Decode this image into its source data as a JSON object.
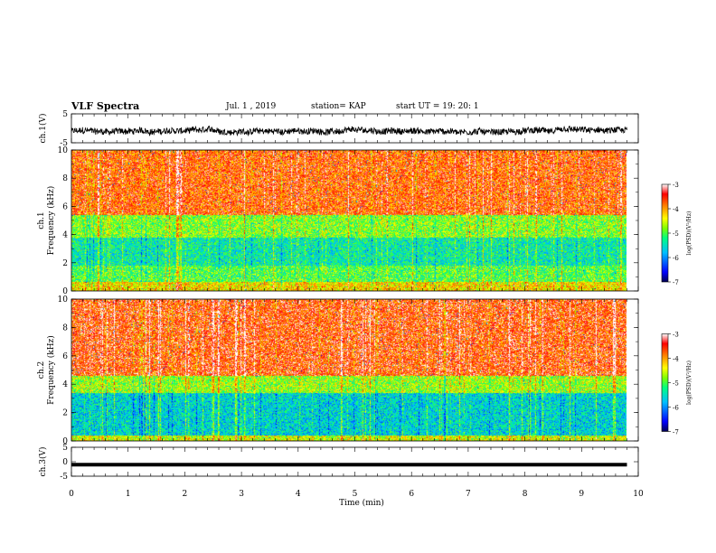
{
  "header": {
    "title": "VLF Spectra",
    "date": "Jul. 1 , 2019",
    "station": "station= KAP",
    "start": "start UT = 19: 20: 1"
  },
  "chart_data": [
    {
      "type": "line",
      "name": "channel-1-waveform",
      "ylabel": "ch.1(V)",
      "ylim": [
        -5,
        5
      ],
      "yticks": [
        "5",
        "-5"
      ],
      "xlim": [
        0,
        10
      ],
      "approx_level_V": -1
    },
    {
      "type": "heatmap",
      "name": "channel-1-spectrogram",
      "ylabel": "ch.1",
      "ylabel2": "Frequency (kHz)",
      "ylim": [
        0,
        10
      ],
      "yticks": [
        "0",
        "2",
        "4",
        "6",
        "8",
        "10"
      ],
      "xlim": [
        0,
        9.8
      ],
      "colorbar": {
        "label": "log(PSD)(V²/Hz)",
        "range": [
          -7,
          -3
        ],
        "ticks": [
          "-3",
          "-4",
          "-5",
          "-6",
          "-7"
        ]
      },
      "dominant_level_by_band_kHz": [
        {
          "band": [
            0,
            0.7
          ],
          "logPSD": -4.3
        },
        {
          "band": [
            0.7,
            1.8
          ],
          "logPSD": -5.0
        },
        {
          "band": [
            1.8,
            3.8
          ],
          "logPSD": -5.4
        },
        {
          "band": [
            3.8,
            5.4
          ],
          "logPSD": -4.8
        },
        {
          "band": [
            5.4,
            10
          ],
          "logPSD": -3.7
        }
      ]
    },
    {
      "type": "heatmap",
      "name": "channel-2-spectrogram",
      "ylabel": "ch.2",
      "ylabel2": "Frequency (kHz)",
      "ylim": [
        0,
        10
      ],
      "yticks": [
        "0",
        "2",
        "4",
        "6",
        "8",
        "10"
      ],
      "xlim": [
        0,
        9.8
      ],
      "colorbar": {
        "label": "log(PSD)(V²/Hz)",
        "range": [
          -7,
          -3
        ],
        "ticks": [
          "-3",
          "-4",
          "-5",
          "-6",
          "-7"
        ]
      },
      "dominant_level_by_band_kHz": [
        {
          "band": [
            0,
            0.4
          ],
          "logPSD": -4.5
        },
        {
          "band": [
            0.4,
            3.4
          ],
          "logPSD": -5.6
        },
        {
          "band": [
            3.4,
            4.6
          ],
          "logPSD": -4.7
        },
        {
          "band": [
            4.6,
            10
          ],
          "logPSD": -3.6
        }
      ]
    },
    {
      "type": "line",
      "name": "channel-3-waveform",
      "ylabel": "ch.3(V)",
      "ylim": [
        -5,
        5
      ],
      "yticks": [
        "5",
        "0",
        "-5"
      ],
      "xlim": [
        0,
        10
      ],
      "approx_level_V": -1
    }
  ],
  "x_axis": {
    "label": "Time (min)",
    "ticks": [
      "0",
      "1",
      "2",
      "3",
      "4",
      "5",
      "6",
      "7",
      "8",
      "9",
      "10"
    ]
  },
  "colors": {
    "colormap": [
      "#000080",
      "#0000ff",
      "#00bfff",
      "#00ff80",
      "#7fff00",
      "#ffff00",
      "#ff8000",
      "#ff0000",
      "#ffffff"
    ]
  }
}
